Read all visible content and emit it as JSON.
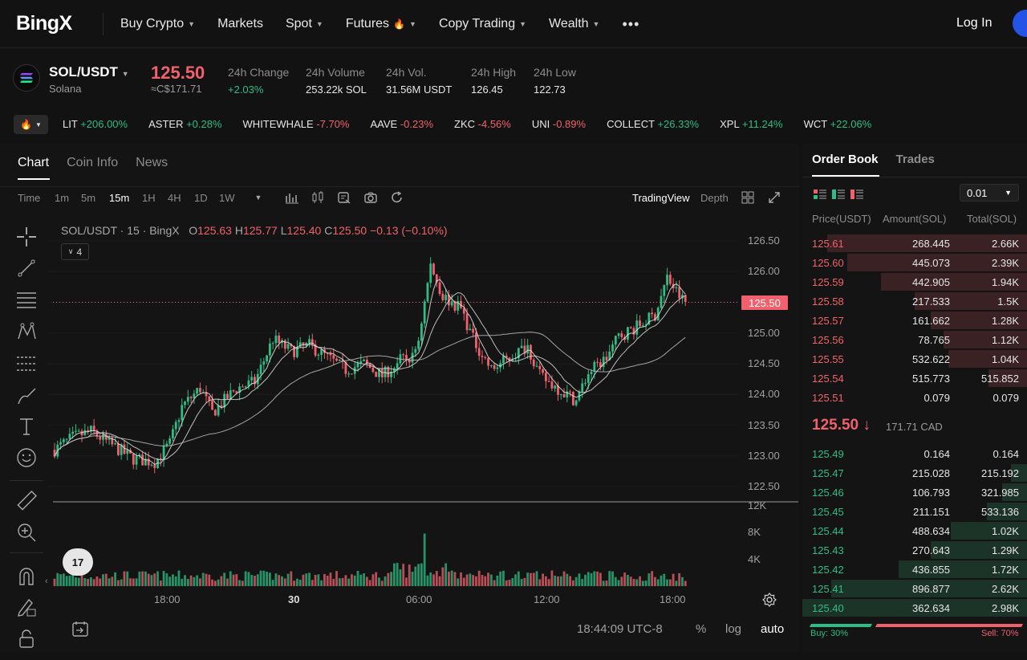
{
  "nav": {
    "logo": "BingX",
    "items": [
      {
        "label": "Buy Crypto",
        "caret": true
      },
      {
        "label": "Markets",
        "caret": false
      },
      {
        "label": "Spot",
        "caret": true
      },
      {
        "label": "Futures",
        "caret": true,
        "fire": true
      },
      {
        "label": "Copy Trading",
        "caret": true
      },
      {
        "label": "Wealth",
        "caret": true
      }
    ],
    "more": "•••",
    "login": "Log In"
  },
  "ticker": {
    "pair": "SOL/USDT",
    "name": "Solana",
    "price": "125.50",
    "price_cad": "≈C$171.71",
    "stats": [
      {
        "label": "24h Change",
        "value": "+2.03%",
        "tone": "green"
      },
      {
        "label": "24h Volume",
        "value": "253.22k SOL",
        "tone": ""
      },
      {
        "label": "24h Vol.",
        "value": "31.56M USDT",
        "tone": ""
      },
      {
        "label": "24h High",
        "value": "126.45",
        "tone": ""
      },
      {
        "label": "24h Low",
        "value": "122.73",
        "tone": ""
      }
    ]
  },
  "hot": [
    {
      "sym": "LIT",
      "chg": "+206.00%",
      "tone": "green"
    },
    {
      "sym": "ASTER",
      "chg": "+0.28%",
      "tone": "green"
    },
    {
      "sym": "WHITEWHALE",
      "chg": "-7.70%",
      "tone": "red"
    },
    {
      "sym": "AAVE",
      "chg": "-0.23%",
      "tone": "red"
    },
    {
      "sym": "ZKC",
      "chg": "-4.56%",
      "tone": "red"
    },
    {
      "sym": "UNI",
      "chg": "-0.89%",
      "tone": "red"
    },
    {
      "sym": "COLLECT",
      "chg": "+26.33%",
      "tone": "green"
    },
    {
      "sym": "XPL",
      "chg": "+11.24%",
      "tone": "green"
    },
    {
      "sym": "WCT",
      "chg": "+22.06%",
      "tone": "green"
    }
  ],
  "chart_tabs": [
    "Chart",
    "Coin Info",
    "News"
  ],
  "timeframes": [
    "Time",
    "1m",
    "5m",
    "15m",
    "1H",
    "4H",
    "1D",
    "1W"
  ],
  "active_timeframe": "15m",
  "chart_modes": {
    "tradingview": "TradingView",
    "depth": "Depth"
  },
  "legend": {
    "title": "SOL/USDT · 15 · BingX",
    "o_lbl": "O",
    "o": "125.63",
    "h_lbl": "H",
    "h": "125.77",
    "l_lbl": "L",
    "l": "125.40",
    "c_lbl": "C",
    "c": "125.50",
    "chg": "−0.13 (−0.10%)",
    "indicators": "4"
  },
  "chart_data": {
    "type": "candlestick",
    "y_ticks": [
      "126.50",
      "126.00",
      "125.50",
      "125.00",
      "124.50",
      "124.00",
      "123.50",
      "123.00",
      "122.50"
    ],
    "ylim": [
      122.3,
      126.7
    ],
    "vol_ticks": [
      "12K",
      "8K",
      "4K"
    ],
    "x_ticks": [
      "18:00",
      "30",
      "06:00",
      "12:00",
      "18:00"
    ],
    "last_price": "125.50"
  },
  "bottom": {
    "clock": "18:44:09 UTC-8",
    "pct": "%",
    "log": "log",
    "auto": "auto"
  },
  "tv_logo": "17",
  "orderbook": {
    "tabs": [
      "Order Book",
      "Trades"
    ],
    "step": "0.01",
    "headers": {
      "price": "Price(USDT)",
      "amount": "Amount(SOL)",
      "total": "Total(SOL)"
    },
    "asks": [
      {
        "price": "125.61",
        "amount": "268.445",
        "total": "2.66K",
        "depth": 0.89
      },
      {
        "price": "125.60",
        "amount": "445.073",
        "total": "2.39K",
        "depth": 0.8
      },
      {
        "price": "125.59",
        "amount": "442.905",
        "total": "1.94K",
        "depth": 0.65
      },
      {
        "price": "125.58",
        "amount": "217.533",
        "total": "1.5K",
        "depth": 0.5
      },
      {
        "price": "125.57",
        "amount": "161.662",
        "total": "1.28K",
        "depth": 0.43
      },
      {
        "price": "125.56",
        "amount": "78.765",
        "total": "1.12K",
        "depth": 0.37
      },
      {
        "price": "125.55",
        "amount": "532.622",
        "total": "1.04K",
        "depth": 0.35
      },
      {
        "price": "125.54",
        "amount": "515.773",
        "total": "515.852",
        "depth": 0.17
      },
      {
        "price": "125.51",
        "amount": "0.079",
        "total": "0.079",
        "depth": 0.0
      }
    ],
    "mid": {
      "price": "125.50",
      "arrow": "↓",
      "cad": "171.71 CAD"
    },
    "bids": [
      {
        "price": "125.49",
        "amount": "0.164",
        "total": "0.164",
        "depth": 0.0
      },
      {
        "price": "125.47",
        "amount": "215.028",
        "total": "215.192",
        "depth": 0.07
      },
      {
        "price": "125.46",
        "amount": "106.793",
        "total": "321.985",
        "depth": 0.11
      },
      {
        "price": "125.45",
        "amount": "211.151",
        "total": "533.136",
        "depth": 0.18
      },
      {
        "price": "125.44",
        "amount": "488.634",
        "total": "1.02K",
        "depth": 0.34
      },
      {
        "price": "125.43",
        "amount": "270.643",
        "total": "1.29K",
        "depth": 0.43
      },
      {
        "price": "125.42",
        "amount": "436.855",
        "total": "1.72K",
        "depth": 0.57
      },
      {
        "price": "125.41",
        "amount": "896.877",
        "total": "2.62K",
        "depth": 0.87
      },
      {
        "price": "125.40",
        "amount": "362.634",
        "total": "2.98K",
        "depth": 1.0
      }
    ],
    "buy_label": "Buy: 30%",
    "sell_label": "Sell: 70%",
    "buy_ratio": 0.3
  },
  "colors": {
    "up": "#2ebd85",
    "down": "#f0616d",
    "accent": "#2354e6"
  }
}
